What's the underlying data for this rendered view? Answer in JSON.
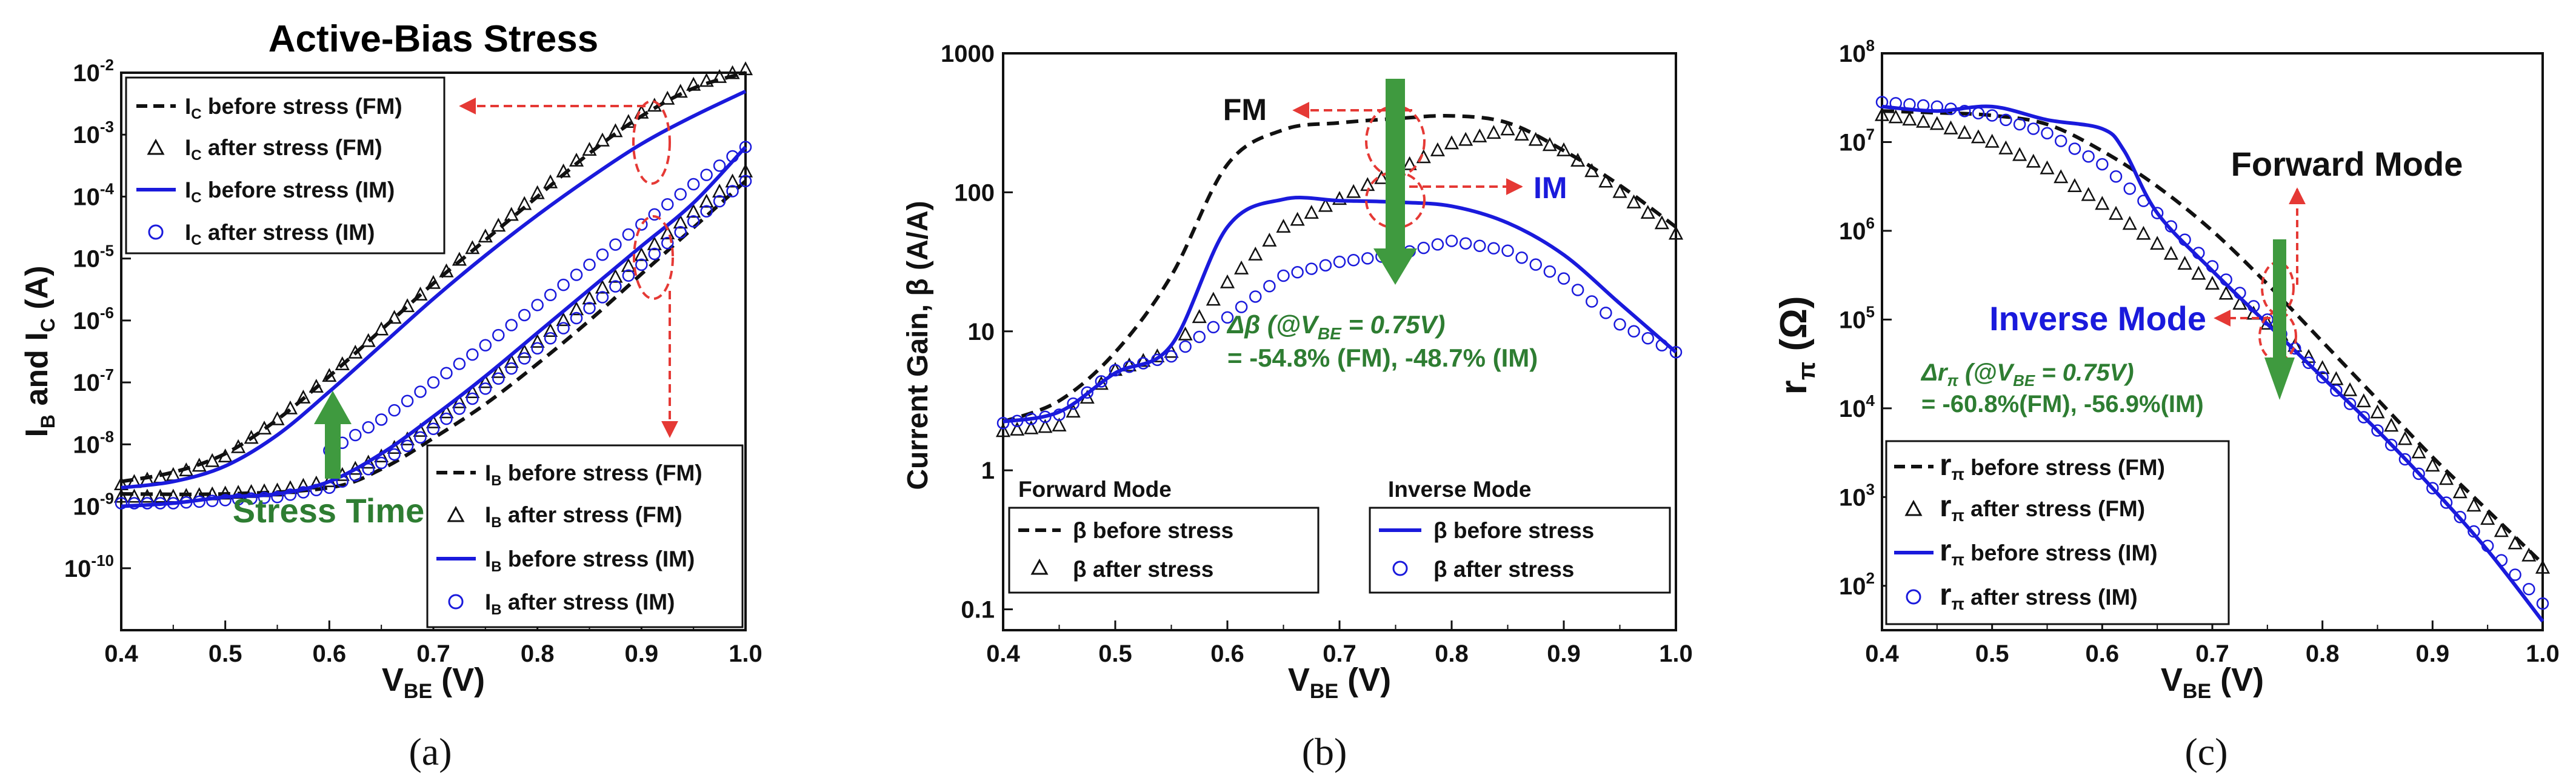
{
  "colors": {
    "fm": "#111111",
    "im": "#1a1adc",
    "green": "#2e7d32",
    "red": "#e53935",
    "greenArrow": "#3f9a3f"
  },
  "chart_data": [
    {
      "id": "a",
      "type": "line",
      "panel_label": "(a)",
      "title": "Active-Bias Stress",
      "xlabel": "V",
      "xlabel_sub": "BE",
      "xlabel_suffix": " (V)",
      "ylabel_parts": [
        "I",
        "B",
        " and I",
        "C",
        " (A)"
      ],
      "xlim": [
        0.4,
        1.0
      ],
      "ylim_log10": [
        -11,
        -2
      ],
      "xticks": [
        "0.4",
        "0.5",
        "0.6",
        "0.7",
        "0.8",
        "0.9",
        "1.0"
      ],
      "yticks_exp": [
        "-10",
        "-9",
        "-8",
        "-7",
        "-6",
        "-5",
        "-4",
        "-3",
        "-2"
      ],
      "legend_top": [
        {
          "sym": "I",
          "sub": "C",
          "text": " before stress (FM)"
        },
        {
          "sym": "I",
          "sub": "C",
          "text": " after stress (FM)"
        },
        {
          "sym": "I",
          "sub": "C",
          "text": " before stress (IM)"
        },
        {
          "sym": "I",
          "sub": "C",
          "text": " after stress (IM)"
        }
      ],
      "legend_bottom": [
        {
          "sym": "I",
          "sub": "B",
          "text": " before stress (FM)"
        },
        {
          "sym": "I",
          "sub": "B",
          "text": " after stress (FM)"
        },
        {
          "sym": "I",
          "sub": "B",
          "text": " before stress (IM)"
        },
        {
          "sym": "I",
          "sub": "B",
          "text": " after stress (IM)"
        }
      ],
      "annotation": "Stress Time",
      "series": [
        {
          "name": "IC before stress (FM)",
          "style": "fm-dash",
          "x": [
            0.4,
            0.45,
            0.5,
            0.55,
            0.6,
            0.65,
            0.7,
            0.75,
            0.8,
            0.85,
            0.9,
            0.95,
            1.0
          ],
          "log10y": [
            -8.6,
            -8.45,
            -8.15,
            -7.6,
            -6.9,
            -6.15,
            -5.4,
            -4.7,
            -4.0,
            -3.3,
            -2.7,
            -2.25,
            -2.0
          ]
        },
        {
          "name": "IC after stress (FM)",
          "style": "fm-tri",
          "x": [
            0.4,
            0.45,
            0.5,
            0.55,
            0.6,
            0.65,
            0.7,
            0.75,
            0.8,
            0.85,
            0.9,
            0.95,
            1.0
          ],
          "log10y": [
            -8.65,
            -8.5,
            -8.2,
            -7.6,
            -6.9,
            -6.15,
            -5.4,
            -4.65,
            -3.95,
            -3.25,
            -2.65,
            -2.2,
            -1.95
          ]
        },
        {
          "name": "IC before stress (IM)",
          "style": "im-line",
          "x": [
            0.4,
            0.45,
            0.5,
            0.55,
            0.6,
            0.65,
            0.7,
            0.75,
            0.8,
            0.85,
            0.9,
            0.95,
            1.0
          ],
          "log10y": [
            -8.7,
            -8.6,
            -8.35,
            -7.85,
            -7.15,
            -6.4,
            -5.65,
            -4.95,
            -4.3,
            -3.7,
            -3.15,
            -2.7,
            -2.3
          ]
        },
        {
          "name": "IC after stress (IM)",
          "style": "im-circ",
          "x": [
            0.6,
            0.65,
            0.7,
            0.75,
            0.8,
            0.85,
            0.9,
            0.95,
            1.0
          ],
          "log10y": [
            -8.1,
            -7.6,
            -7.0,
            -6.4,
            -5.75,
            -5.1,
            -4.45,
            -3.8,
            -3.2
          ]
        },
        {
          "name": "IB before stress (FM)",
          "style": "fm-dash",
          "x": [
            0.4,
            0.5,
            0.6,
            0.65,
            0.7,
            0.75,
            0.8,
            0.85,
            0.9,
            0.95,
            1.0
          ],
          "log10y": [
            -8.8,
            -8.8,
            -8.7,
            -8.4,
            -7.9,
            -7.35,
            -6.7,
            -6.0,
            -5.25,
            -4.5,
            -3.75
          ]
        },
        {
          "name": "IB after stress (FM)",
          "style": "fm-tri",
          "x": [
            0.4,
            0.45,
            0.5,
            0.55,
            0.6,
            0.65,
            0.7,
            0.75,
            0.8,
            0.85,
            0.9,
            0.95,
            1.0
          ],
          "log10y": [
            -8.85,
            -8.85,
            -8.8,
            -8.75,
            -8.6,
            -8.2,
            -7.65,
            -7.0,
            -6.35,
            -5.65,
            -4.95,
            -4.25,
            -3.6
          ]
        },
        {
          "name": "IB before stress (IM)",
          "style": "im-line",
          "x": [
            0.4,
            0.45,
            0.5,
            0.55,
            0.6,
            0.65,
            0.7,
            0.75,
            0.8,
            0.85,
            0.9,
            0.95,
            1.0
          ],
          "log10y": [
            -9.0,
            -8.95,
            -8.85,
            -8.8,
            -8.6,
            -8.15,
            -7.55,
            -6.9,
            -6.2,
            -5.5,
            -4.8,
            -4.1,
            -3.2
          ]
        },
        {
          "name": "IB after stress (IM)",
          "style": "im-circ",
          "x": [
            0.4,
            0.45,
            0.5,
            0.55,
            0.6,
            0.65,
            0.7,
            0.75,
            0.8,
            0.85,
            0.9,
            0.95,
            1.0
          ],
          "log10y": [
            -8.95,
            -8.95,
            -8.9,
            -8.85,
            -8.7,
            -8.3,
            -7.75,
            -7.1,
            -6.45,
            -5.8,
            -5.1,
            -4.4,
            -3.75
          ]
        }
      ]
    },
    {
      "id": "b",
      "type": "line",
      "panel_label": "(b)",
      "xlabel": "V",
      "xlabel_sub": "BE",
      "xlabel_suffix": " (V)",
      "ylabel": "Current Gain, β (A/A)",
      "xlim": [
        0.4,
        1.0
      ],
      "ylim_log10": [
        -1.15,
        3
      ],
      "xticks": [
        "0.4",
        "0.5",
        "0.6",
        "0.7",
        "0.8",
        "0.9",
        "1.0"
      ],
      "yticks": [
        "0.1",
        "1",
        "10",
        "100",
        "1000"
      ],
      "legend_fm_title": "Forward Mode",
      "legend_im_title": "Inverse Mode",
      "legend_fm": [
        "β before stress",
        "β after stress"
      ],
      "legend_im": [
        "β before stress",
        "β after stress"
      ],
      "label_fm": "FM",
      "label_im": "IM",
      "annotation_line1_a": "Δβ (@V",
      "annotation_line1_sub": "BE",
      "annotation_line1_b": " = 0.75V)",
      "annotation_line2": "= -54.8% (FM), -48.7% (IM)",
      "series": [
        {
          "name": "beta before stress (FM)",
          "style": "fm-dash",
          "x": [
            0.4,
            0.45,
            0.5,
            0.55,
            0.6,
            0.65,
            0.7,
            0.75,
            0.8,
            0.85,
            0.9,
            0.95,
            1.0
          ],
          "log10y": [
            0.35,
            0.5,
            0.85,
            1.4,
            2.2,
            2.45,
            2.5,
            2.53,
            2.55,
            2.5,
            2.3,
            2.05,
            1.75
          ]
        },
        {
          "name": "beta after stress (FM)",
          "style": "fm-tri",
          "x": [
            0.4,
            0.45,
            0.5,
            0.55,
            0.6,
            0.65,
            0.7,
            0.75,
            0.8,
            0.85,
            0.9,
            0.95,
            1.0
          ],
          "log10y": [
            0.28,
            0.32,
            0.72,
            0.85,
            1.35,
            1.75,
            1.95,
            2.15,
            2.35,
            2.45,
            2.3,
            2.0,
            1.7
          ]
        },
        {
          "name": "beta before stress (IM)",
          "style": "im-line",
          "x": [
            0.4,
            0.45,
            0.5,
            0.55,
            0.6,
            0.65,
            0.7,
            0.75,
            0.8,
            0.85,
            0.9,
            0.95,
            1.0
          ],
          "log10y": [
            0.35,
            0.42,
            0.7,
            0.9,
            1.75,
            1.95,
            1.94,
            1.93,
            1.9,
            1.78,
            1.55,
            1.2,
            0.85
          ]
        },
        {
          "name": "beta after stress (IM)",
          "style": "im-circ",
          "x": [
            0.4,
            0.45,
            0.5,
            0.55,
            0.6,
            0.65,
            0.7,
            0.75,
            0.8,
            0.85,
            0.9,
            0.95,
            1.0
          ],
          "log10y": [
            0.34,
            0.4,
            0.72,
            0.82,
            1.1,
            1.4,
            1.5,
            1.55,
            1.65,
            1.58,
            1.38,
            1.05,
            0.85
          ]
        }
      ]
    },
    {
      "id": "c",
      "type": "line",
      "panel_label": "(c)",
      "xlabel": "V",
      "xlabel_sub": "BE",
      "xlabel_suffix": " (V)",
      "ylabel_sym": "r",
      "ylabel_sub": "π",
      "ylabel_suffix": " (Ω)",
      "xlim": [
        0.4,
        1.0
      ],
      "ylim_log10": [
        1.5,
        8
      ],
      "xticks": [
        "0.4",
        "0.5",
        "0.6",
        "0.7",
        "0.8",
        "0.9",
        "1.0"
      ],
      "yticks_exp": [
        "2",
        "3",
        "4",
        "5",
        "6",
        "7",
        "8"
      ],
      "legend": [
        {
          "sym": "r",
          "sub": "π",
          "text": " before stress (FM)"
        },
        {
          "sym": "r",
          "sub": "π",
          "text": " after stress (FM)"
        },
        {
          "sym": "r",
          "sub": "π",
          "text": " before stress (IM)"
        },
        {
          "sym": "r",
          "sub": "π",
          "text": " after stress (IM)"
        }
      ],
      "label_fm": "Forward Mode",
      "label_im": "Inverse Mode",
      "annotation_line1_a": "Δr",
      "annotation_line1_sub": "π",
      "annotation_line1_b": " (@V",
      "annotation_line1_sub2": "BE",
      "annotation_line1_c": " = 0.75V)",
      "annotation_line2": "= -60.8%(FM), -56.9%(IM)",
      "series": [
        {
          "name": "rpi before stress (FM)",
          "style": "fm-dash",
          "x": [
            0.4,
            0.45,
            0.5,
            0.55,
            0.6,
            0.65,
            0.7,
            0.75,
            0.8,
            0.85,
            0.9,
            0.95,
            1.0
          ],
          "log10y": [
            7.35,
            7.33,
            7.3,
            7.2,
            6.9,
            6.5,
            6.0,
            5.4,
            4.75,
            4.1,
            3.45,
            2.85,
            2.25
          ]
        },
        {
          "name": "rpi after stress (FM)",
          "style": "fm-tri",
          "x": [
            0.4,
            0.45,
            0.5,
            0.55,
            0.6,
            0.65,
            0.7,
            0.75,
            0.8,
            0.85,
            0.9,
            0.95,
            1.0
          ],
          "log10y": [
            7.3,
            7.2,
            7.0,
            6.7,
            6.3,
            5.85,
            5.4,
            4.95,
            4.45,
            3.95,
            3.35,
            2.75,
            2.2
          ]
        },
        {
          "name": "rpi before stress (IM)",
          "style": "im-line",
          "x": [
            0.4,
            0.45,
            0.5,
            0.55,
            0.6,
            0.62,
            0.65,
            0.7,
            0.75,
            0.8,
            0.85,
            0.9,
            0.95,
            1.0
          ],
          "log10y": [
            7.4,
            7.35,
            7.4,
            7.25,
            7.15,
            6.9,
            6.2,
            5.55,
            4.95,
            4.35,
            3.75,
            3.1,
            2.4,
            1.6
          ]
        },
        {
          "name": "rpi after stress (IM)",
          "style": "im-circ",
          "x": [
            0.4,
            0.45,
            0.5,
            0.55,
            0.6,
            0.65,
            0.7,
            0.75,
            0.8,
            0.85,
            0.9,
            0.95,
            1.0
          ],
          "log10y": [
            7.45,
            7.4,
            7.3,
            7.1,
            6.75,
            6.2,
            5.6,
            5.0,
            4.35,
            3.75,
            3.1,
            2.45,
            1.8
          ]
        }
      ]
    }
  ]
}
